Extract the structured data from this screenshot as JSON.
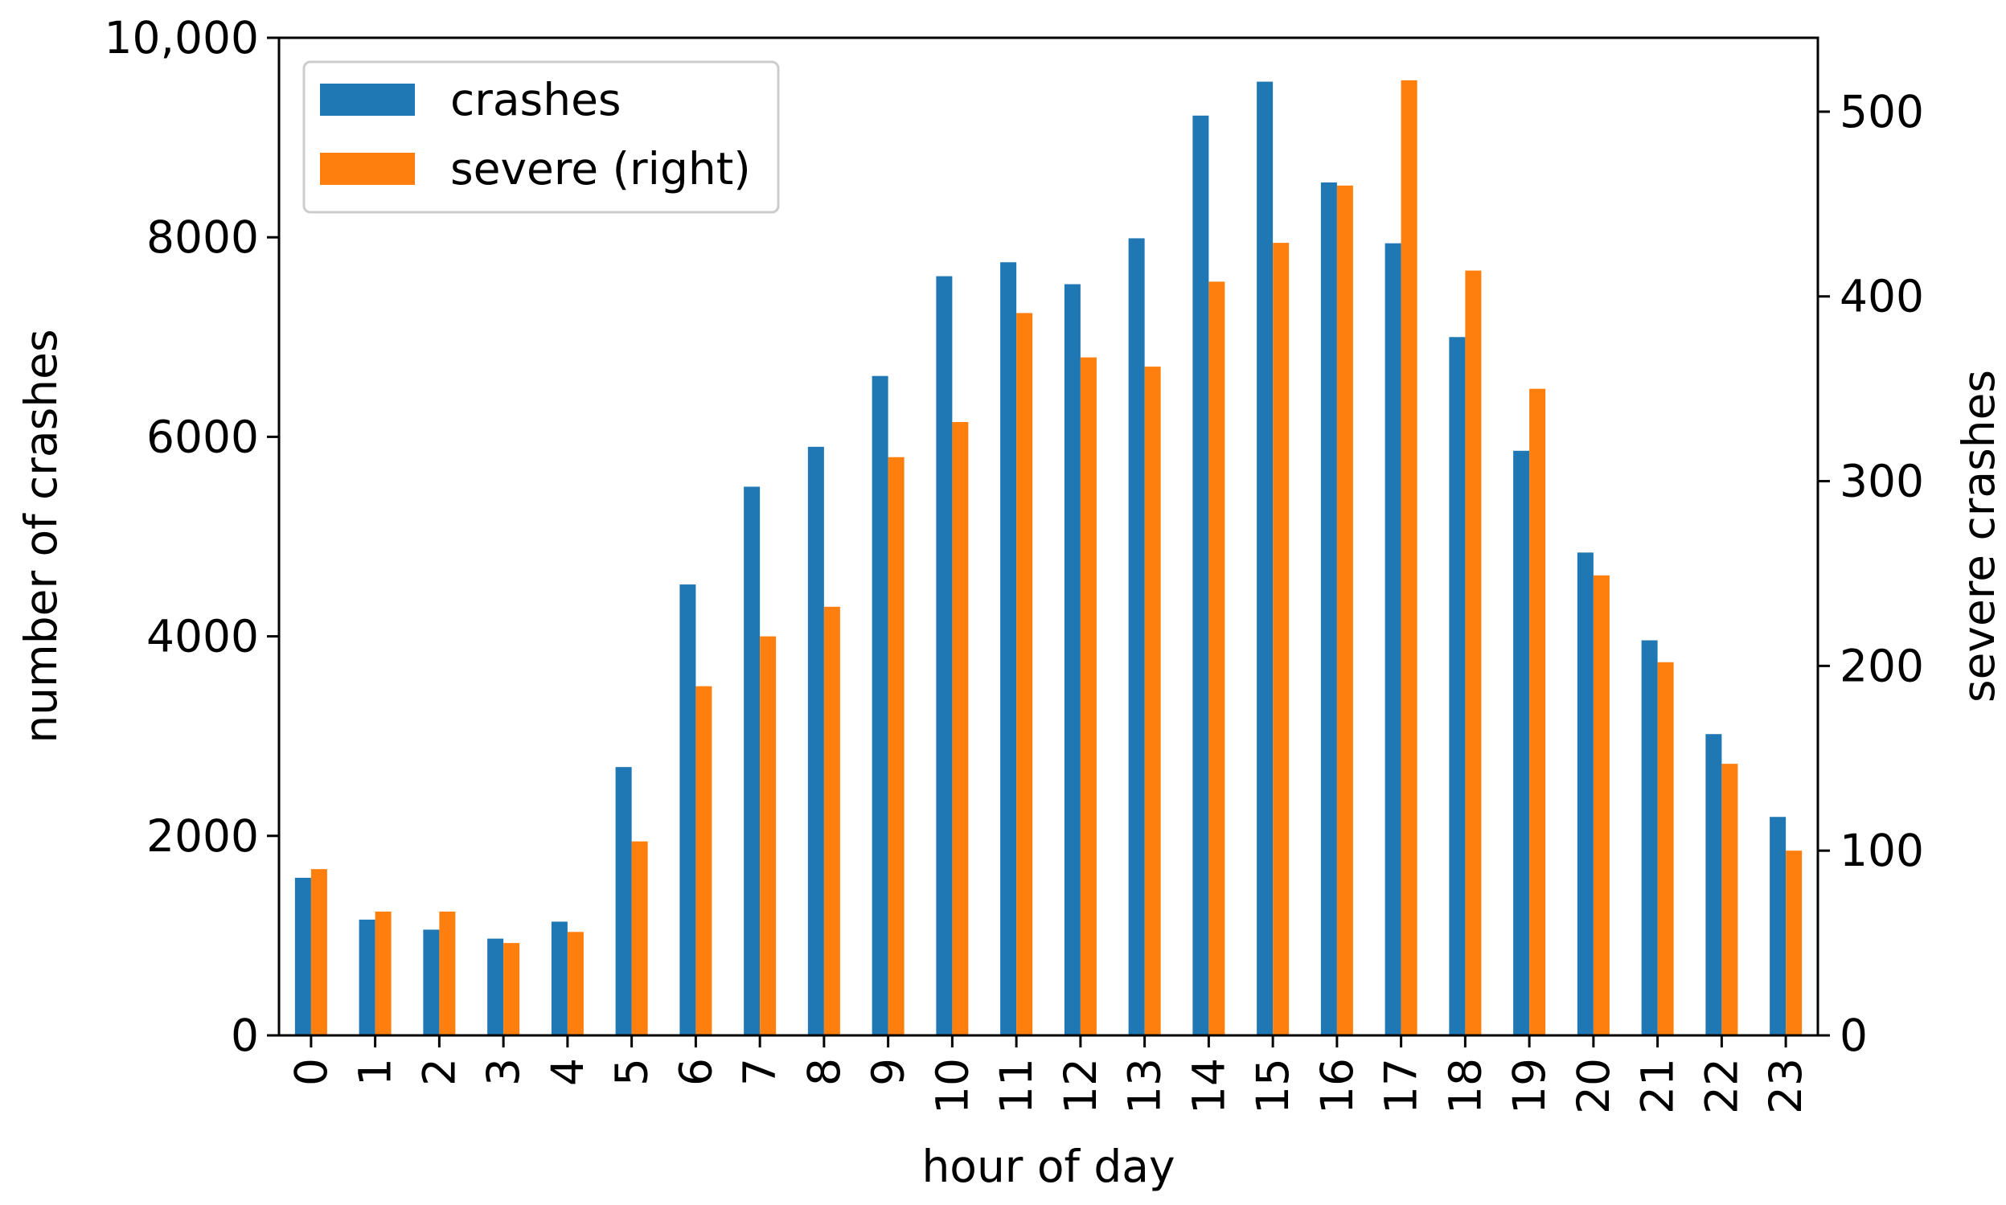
{
  "chart_data": {
    "type": "bar",
    "categories": [
      "0",
      "1",
      "2",
      "3",
      "4",
      "5",
      "6",
      "7",
      "8",
      "9",
      "10",
      "11",
      "12",
      "13",
      "14",
      "15",
      "16",
      "17",
      "18",
      "19",
      "20",
      "21",
      "22",
      "23"
    ],
    "series": [
      {
        "name": "crashes",
        "axis": "left",
        "color": "#1f77b4",
        "values": [
          1580,
          1160,
          1060,
          970,
          1140,
          2690,
          4520,
          5500,
          5900,
          6610,
          7610,
          7750,
          7530,
          7990,
          9220,
          9560,
          8550,
          7940,
          7000,
          5860,
          4840,
          3960,
          3020,
          2190
        ]
      },
      {
        "name": "severe (right)",
        "axis": "right",
        "color": "#ff7f0e",
        "values": [
          90,
          67,
          67,
          50,
          56,
          105,
          189,
          216,
          232,
          313,
          332,
          391,
          367,
          362,
          408,
          429,
          460,
          517,
          414,
          350,
          249,
          202,
          147,
          100
        ]
      }
    ],
    "xlabel": "hour of day",
    "ylabel": "number of crashes",
    "ylabel_right": "severe crashes",
    "ylim": [
      0,
      10000
    ],
    "ylim_right": [
      0,
      540
    ],
    "yticks_left": [
      {
        "value": 0,
        "label": "0"
      },
      {
        "value": 2000,
        "label": "2000"
      },
      {
        "value": 4000,
        "label": "4000"
      },
      {
        "value": 6000,
        "label": "6000"
      },
      {
        "value": 8000,
        "label": "8000"
      },
      {
        "value": 10000,
        "label": "10,000"
      }
    ],
    "yticks_right": [
      {
        "value": 0,
        "label": "0"
      },
      {
        "value": 100,
        "label": "100"
      },
      {
        "value": 200,
        "label": "200"
      },
      {
        "value": 300,
        "label": "300"
      },
      {
        "value": 400,
        "label": "400"
      },
      {
        "value": 500,
        "label": "500"
      }
    ],
    "grid": false,
    "legend": {
      "position": "top-left"
    }
  }
}
